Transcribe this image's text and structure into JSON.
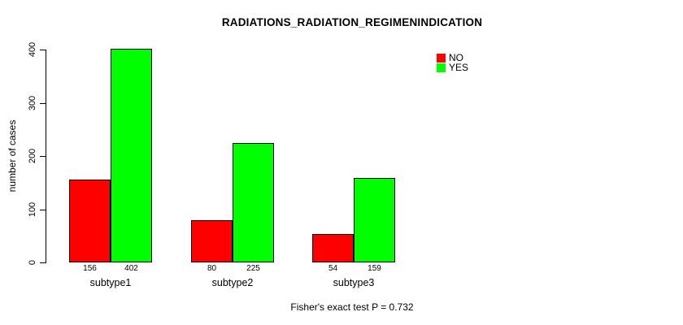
{
  "title": "RADIATIONS_RADIATION_REGIMENINDICATION",
  "y_axis": {
    "label": "number of cases",
    "ticks": [
      0,
      100,
      200,
      300,
      400
    ]
  },
  "legend": {
    "items": [
      {
        "label": "NO",
        "color": "#FF0000"
      },
      {
        "label": "YES",
        "color": "#00FF00"
      }
    ]
  },
  "footer": {
    "text": "Fisher's exact test P = 0.732"
  },
  "chart_data": {
    "type": "bar",
    "title": "RADIATIONS_RADIATION_REGIMENINDICATION",
    "categories": [
      "subtype1",
      "subtype2",
      "subtype3"
    ],
    "series": [
      {
        "name": "NO",
        "color": "#FF0000",
        "values": [
          156,
          80,
          54
        ]
      },
      {
        "name": "YES",
        "color": "#00FF00",
        "values": [
          402,
          225,
          159
        ]
      }
    ],
    "xlabel": "",
    "ylabel": "number of cases",
    "ylim": [
      0,
      400
    ],
    "yticks": [
      0,
      100,
      200,
      300,
      400
    ],
    "grid": false,
    "bar_border_color": "#000000",
    "bar_value_labels_shown": true,
    "legend_position": "top-right",
    "annotation": "Fisher's exact test P = 0.732"
  }
}
